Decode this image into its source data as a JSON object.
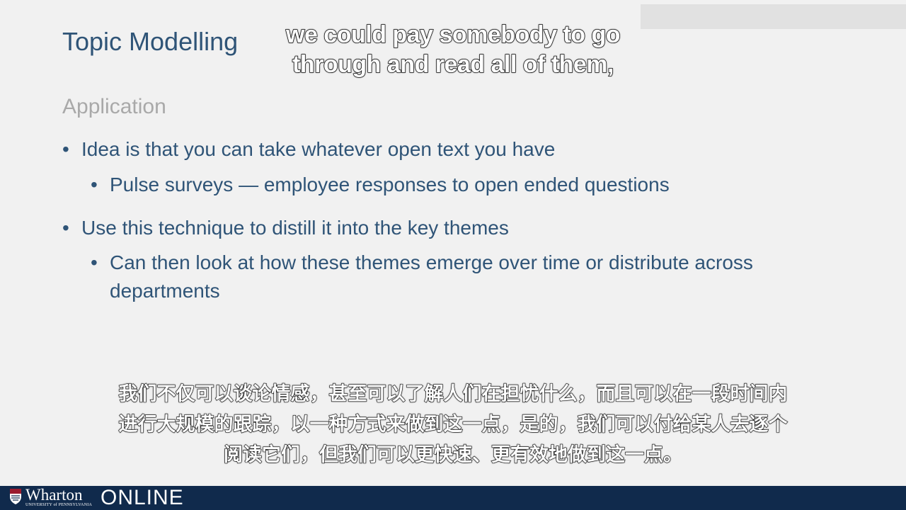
{
  "slide": {
    "title": "Topic Modelling",
    "subheading": "Application",
    "bullets": [
      {
        "text": "Idea is that you can take whatever open text you have",
        "sub": "Pulse surveys — employee responses to open ended questions"
      },
      {
        "text": "Use this technique to distill it into the key themes",
        "sub": "Can then look at how these themes emerge over time or distribute across departments"
      }
    ],
    "bullet_symbol": "•"
  },
  "captions": {
    "english": "we could pay somebody to go through and read all of them,",
    "chinese": "我们不仅可以谈论情感，甚至可以了解人们在担忧什么，而且可以在一段时间内进行大规模的跟踪，以一种方式来做到这一点，是的，我们可以付给某人去逐个阅读它们，但我们可以更快速、更有效地做到这一点。"
  },
  "footer": {
    "brand": "Wharton",
    "university": "UNIVERSITY of PENNSYLVANIA",
    "product": "ONLINE"
  },
  "colors": {
    "title": "#2f5477",
    "subheading": "#a9a9a9",
    "footer_bg": "#102a4c",
    "slide_bg": "#f1f1f1"
  },
  "icons": {
    "logo": "penn-shield-icon"
  }
}
